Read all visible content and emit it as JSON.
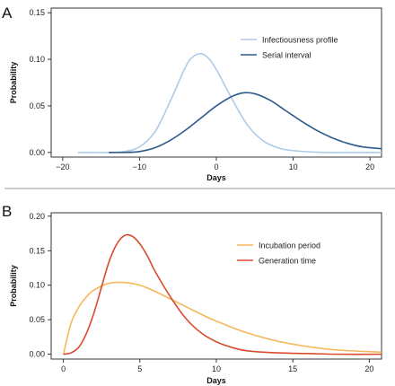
{
  "panels": {
    "a": {
      "letter": "A"
    },
    "b": {
      "letter": "B"
    }
  },
  "chart_data": [
    {
      "type": "line",
      "panel": "A",
      "xlabel": "Days",
      "ylabel": "Probability",
      "xlim": [
        -21.5,
        21.5
      ],
      "ylim": [
        -0.005,
        0.155
      ],
      "xticks": [
        -20,
        -10,
        0,
        10,
        20
      ],
      "xtick_labels": [
        "−20",
        "−10",
        "0",
        "10",
        "20"
      ],
      "yticks": [
        0.0,
        0.05,
        0.1,
        0.15
      ],
      "ytick_labels": [
        "0.00",
        "0.05",
        "0.10",
        "0.15"
      ],
      "legend_position": "top-right",
      "grid": false,
      "series": [
        {
          "name": "Infectiousness profile",
          "color": "#aecbe8",
          "x": [
            -18,
            -14,
            -12,
            -10,
            -8,
            -6,
            -4,
            -3,
            -2,
            -1,
            0,
            2,
            4,
            6,
            8,
            10,
            14,
            18,
            21.5
          ],
          "y": [
            0.0,
            0.0,
            0.001,
            0.006,
            0.022,
            0.055,
            0.092,
            0.103,
            0.106,
            0.101,
            0.089,
            0.058,
            0.03,
            0.013,
            0.005,
            0.002,
            0.0,
            0.0,
            0.0
          ]
        },
        {
          "name": "Serial interval",
          "color": "#2c5a8c",
          "x": [
            -14,
            -12,
            -10,
            -8,
            -6,
            -4,
            -2,
            0,
            2,
            3.5,
            5,
            7,
            9,
            11,
            13,
            15,
            17,
            19,
            21.5
          ],
          "y": [
            0.0,
            0.0,
            0.001,
            0.005,
            0.013,
            0.024,
            0.037,
            0.05,
            0.06,
            0.064,
            0.063,
            0.056,
            0.045,
            0.034,
            0.024,
            0.016,
            0.01,
            0.006,
            0.004
          ]
        }
      ]
    },
    {
      "type": "line",
      "panel": "B",
      "xlabel": "Days",
      "ylabel": "Probability",
      "xlim": [
        -0.8,
        20.8
      ],
      "ylim": [
        -0.007,
        0.205
      ],
      "xticks": [
        0,
        5,
        10,
        15,
        20
      ],
      "xtick_labels": [
        "0",
        "5",
        "10",
        "15",
        "20"
      ],
      "yticks": [
        0.0,
        0.05,
        0.1,
        0.15,
        0.2
      ],
      "ytick_labels": [
        "0.00",
        "0.05",
        "0.10",
        "0.15",
        "0.20"
      ],
      "legend_position": "top-right",
      "grid": false,
      "series": [
        {
          "name": "Incubation period",
          "color": "#f5b85a",
          "x": [
            0,
            0.5,
            1,
            1.5,
            2,
            3,
            4,
            5,
            6,
            7,
            8,
            9,
            10,
            12,
            14,
            16,
            18,
            20.8
          ],
          "y": [
            0.0,
            0.045,
            0.068,
            0.083,
            0.093,
            0.103,
            0.104,
            0.1,
            0.091,
            0.08,
            0.069,
            0.058,
            0.048,
            0.031,
            0.019,
            0.011,
            0.006,
            0.003
          ]
        },
        {
          "name": "Generation time",
          "color": "#d94b2f",
          "x": [
            0,
            0.5,
            1,
            1.5,
            2,
            2.5,
            3,
            3.5,
            4,
            4.5,
            5,
            5.5,
            6,
            7,
            8,
            9,
            10,
            11,
            12,
            14,
            16,
            18,
            20.8
          ],
          "y": [
            0.0,
            0.002,
            0.01,
            0.03,
            0.06,
            0.098,
            0.135,
            0.16,
            0.172,
            0.171,
            0.16,
            0.142,
            0.12,
            0.083,
            0.052,
            0.031,
            0.018,
            0.01,
            0.005,
            0.002,
            0.001,
            0.0,
            0.0
          ]
        }
      ]
    }
  ]
}
